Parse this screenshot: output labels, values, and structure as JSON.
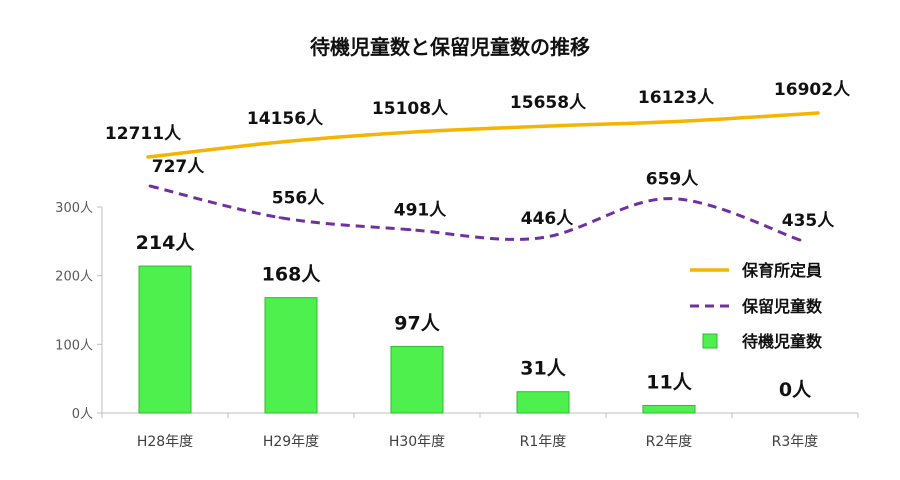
{
  "chart_data": {
    "type": "bar",
    "title": "待機児童数と保留児童数の推移",
    "categories": [
      "H28年度",
      "H29年度",
      "H30年度",
      "R1年度",
      "R2年度",
      "R3年度"
    ],
    "ylim": [
      0,
      300
    ],
    "yticks": [
      0,
      100,
      200,
      300
    ],
    "ytick_labels": [
      "0人",
      "100人",
      "200人",
      "300人"
    ],
    "grid": false,
    "legend": {
      "position": "right"
    },
    "series": [
      {
        "name": "保育所定員",
        "type": "line",
        "style": "solid",
        "color": "#f5b400",
        "values": [
          12711,
          14156,
          15108,
          15658,
          16123,
          16902
        ],
        "labels": [
          "12711人",
          "14156人",
          "15108人",
          "15658人",
          "16123人",
          "16902人"
        ]
      },
      {
        "name": "保留児童数",
        "type": "line",
        "style": "dashed",
        "color": "#7030a0",
        "values": [
          727,
          556,
          491,
          446,
          659,
          435
        ],
        "labels": [
          "727人",
          "556人",
          "491人",
          "446人",
          "659人",
          "435人"
        ]
      },
      {
        "name": "待機児童数",
        "type": "bar",
        "color": "#4df04d",
        "values": [
          214,
          168,
          97,
          31,
          11,
          0
        ],
        "labels": [
          "214人",
          "168人",
          "97人",
          "31人",
          "11人",
          "0人"
        ]
      }
    ]
  }
}
